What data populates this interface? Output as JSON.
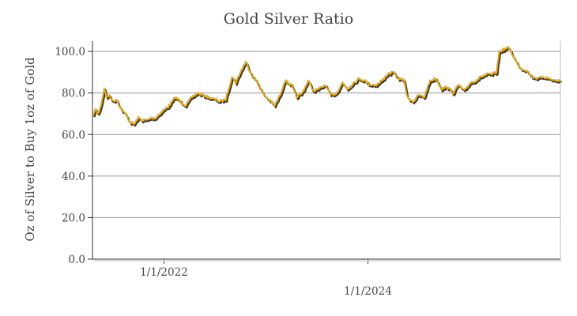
{
  "chart_data": {
    "type": "line",
    "title": "Gold Silver Ratio",
    "xlabel": "",
    "ylabel": "Oz of Silver to Buy 1oz of Gold",
    "x_range": [
      "2021-04-20",
      "2025-11-20"
    ],
    "ylim": [
      0,
      105
    ],
    "y_ticks": [
      "0.0",
      "20.0",
      "40.0",
      "60.0",
      "80.0",
      "100.0"
    ],
    "x_ticks": [
      {
        "date": "2022-01-01",
        "label": "1/1/2022"
      },
      {
        "date": "2024-01-01",
        "label": "1/1/2024"
      }
    ],
    "grid": "horizontal",
    "legend": "none",
    "colors": {
      "line": "#e8ad14",
      "shadow": "#222222",
      "grid": "#999999",
      "axis": "#333333"
    },
    "series": [
      {
        "x": [
          "2021-04-20",
          "2021-05-01",
          "2021-05-10",
          "2021-05-20",
          "2021-06-01",
          "2021-06-10",
          "2021-06-20",
          "2021-07-01",
          "2021-07-15",
          "2021-08-01",
          "2021-08-15",
          "2021-09-01",
          "2021-09-15",
          "2021-10-01",
          "2021-10-15",
          "2021-11-01",
          "2021-11-15",
          "2021-12-01",
          "2021-12-15",
          "2022-01-01",
          "2022-01-20",
          "2022-02-10",
          "2022-03-01",
          "2022-03-20",
          "2022-04-10",
          "2022-05-01",
          "2022-05-20",
          "2022-06-10",
          "2022-07-01",
          "2022-07-20",
          "2022-08-10",
          "2022-09-01",
          "2022-09-15",
          "2022-10-01",
          "2022-10-20",
          "2022-11-10",
          "2022-12-01",
          "2022-12-20",
          "2023-01-10",
          "2023-02-01",
          "2023-02-20",
          "2023-03-10",
          "2023-04-01",
          "2023-04-20",
          "2023-05-10",
          "2023-06-01",
          "2023-06-20",
          "2023-07-10",
          "2023-08-01",
          "2023-08-20",
          "2023-09-10",
          "2023-10-01",
          "2023-10-20",
          "2023-11-10",
          "2023-12-01",
          "2023-12-20",
          "2024-01-10",
          "2024-02-01",
          "2024-02-20",
          "2024-03-10",
          "2024-04-01",
          "2024-04-20",
          "2024-05-10",
          "2024-05-20",
          "2024-06-10",
          "2024-07-01",
          "2024-07-20",
          "2024-08-10",
          "2024-09-01",
          "2024-09-20",
          "2024-10-10",
          "2024-11-01",
          "2024-11-20",
          "2024-12-10",
          "2025-01-01",
          "2025-01-20",
          "2025-02-10",
          "2025-03-01",
          "2025-03-20",
          "2025-04-05",
          "2025-04-15",
          "2025-05-01",
          "2025-05-20",
          "2025-06-10",
          "2025-07-01",
          "2025-07-20",
          "2025-08-10",
          "2025-09-01",
          "2025-09-20",
          "2025-10-10",
          "2025-11-01",
          "2025-11-20"
        ],
        "y": [
          69,
          72,
          70,
          74,
          82,
          78,
          79,
          76,
          77,
          72,
          70,
          66,
          65,
          68,
          67,
          67,
          68,
          68,
          70,
          72,
          74,
          78,
          76,
          74,
          78,
          80,
          79,
          78,
          77,
          76,
          77,
          88,
          85,
          90,
          95,
          89,
          85,
          80,
          77,
          74,
          79,
          86,
          84,
          78,
          80,
          86,
          81,
          82,
          84,
          79,
          80,
          85,
          82,
          85,
          87,
          86,
          84,
          84,
          86,
          89,
          90,
          87,
          86,
          78,
          76,
          79,
          78,
          86,
          87,
          82,
          83,
          80,
          84,
          81,
          85,
          86,
          88,
          89,
          89,
          90,
          100,
          101,
          102,
          96,
          92,
          91,
          88,
          87,
          88,
          87,
          86,
          86
        ]
      }
    ]
  }
}
